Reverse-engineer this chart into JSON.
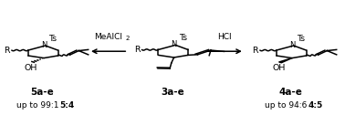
{
  "bg_color": "#ffffff",
  "fig_width": 3.78,
  "fig_height": 1.26,
  "dpi": 100,
  "label_5ae": "5a-e",
  "label_3ae": "3a-e",
  "label_4ae": "4a-e",
  "text_5ae_ratio": "up to 99:1 ",
  "text_5ae_bold": "5:4",
  "text_4ae_ratio": "up to 94:6 ",
  "text_4ae_bold": "4:5",
  "reagent_left": "MeAlCl",
  "reagent_left_sub": "2",
  "reagent_right": "HCl",
  "line_color": "#000000",
  "lw": 1.1
}
